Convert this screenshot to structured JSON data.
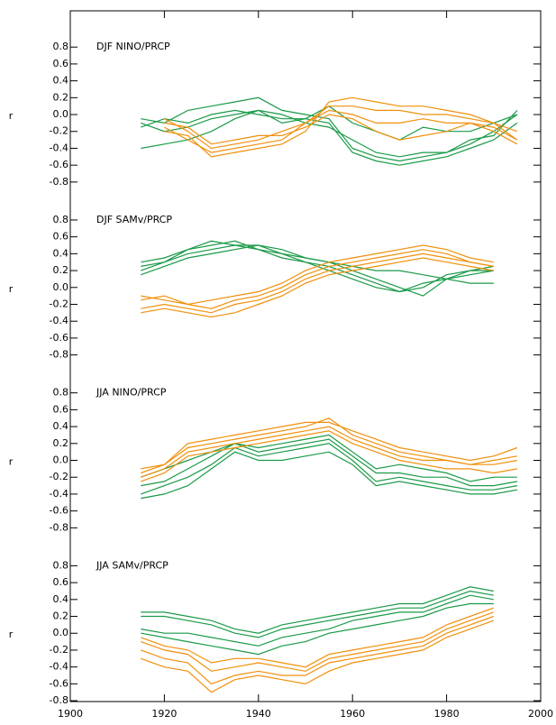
{
  "chart_data": [
    {
      "type": "line",
      "title": "DJF NINO/PRCP",
      "ylabel": "r",
      "x": [
        1915,
        1920,
        1925,
        1930,
        1935,
        1940,
        1945,
        1950,
        1955,
        1960,
        1965,
        1970,
        1975,
        1980,
        1985,
        1990,
        1995
      ],
      "ylim": [
        -1.0,
        1.23
      ],
      "yticks": [
        -0.8,
        -0.6,
        -0.4,
        -0.2,
        {
          "value": 0,
          "label": "0.0"
        },
        0.2,
        0.4,
        0.6,
        0.8
      ],
      "series": [
        {
          "color": "#1a9a48",
          "values": [
            -0.05,
            -0.1,
            0.05,
            0.1,
            0.15,
            0.2,
            0.05,
            0.0,
            -0.05,
            -0.4,
            -0.5,
            -0.55,
            -0.5,
            -0.45,
            -0.35,
            -0.2,
            0.0
          ]
        },
        {
          "color": "#1a9a48",
          "values": [
            -0.15,
            -0.05,
            -0.1,
            0.0,
            0.05,
            0.0,
            -0.05,
            -0.05,
            -0.1,
            -0.45,
            -0.55,
            -0.6,
            -0.55,
            -0.5,
            -0.4,
            -0.3,
            -0.1
          ]
        },
        {
          "color": "#1a9a48",
          "values": [
            -0.4,
            -0.35,
            -0.3,
            -0.2,
            -0.05,
            0.05,
            0.0,
            -0.1,
            -0.15,
            -0.3,
            -0.45,
            -0.5,
            -0.45,
            -0.45,
            -0.3,
            -0.25,
            0.05
          ]
        },
        {
          "color": "#1a9a48",
          "values": [
            -0.1,
            -0.2,
            -0.15,
            -0.05,
            0.0,
            0.05,
            -0.1,
            -0.05,
            0.1,
            -0.1,
            -0.2,
            -0.3,
            -0.15,
            -0.2,
            -0.2,
            -0.1,
            0.0
          ]
        },
        {
          "color": "#f0900c",
          "values": [
            null,
            -0.15,
            -0.3,
            -0.45,
            -0.4,
            -0.35,
            -0.3,
            -0.1,
            0.1,
            0.1,
            0.05,
            0.05,
            0.0,
            0.0,
            -0.05,
            -0.1,
            -0.2
          ]
        },
        {
          "color": "#f0900c",
          "values": [
            null,
            -0.2,
            -0.25,
            -0.5,
            -0.45,
            -0.4,
            -0.35,
            -0.2,
            0.15,
            0.2,
            0.15,
            0.1,
            0.1,
            0.05,
            0.0,
            -0.1,
            -0.3
          ]
        },
        {
          "color": "#f0900c",
          "values": [
            null,
            -0.1,
            -0.15,
            -0.35,
            -0.3,
            -0.25,
            -0.25,
            -0.15,
            0.0,
            -0.05,
            -0.2,
            -0.3,
            -0.25,
            -0.2,
            -0.1,
            -0.15,
            -0.3
          ]
        },
        {
          "color": "#f0900c",
          "values": [
            null,
            -0.05,
            -0.2,
            -0.4,
            -0.35,
            -0.3,
            -0.2,
            -0.1,
            0.05,
            0.0,
            -0.1,
            -0.1,
            -0.05,
            -0.1,
            -0.1,
            -0.2,
            -0.35
          ]
        }
      ]
    },
    {
      "type": "line",
      "title": "DJF SAMv/PRCP",
      "ylabel": "r",
      "x": [
        1915,
        1920,
        1925,
        1930,
        1935,
        1940,
        1945,
        1950,
        1955,
        1960,
        1965,
        1970,
        1975,
        1980,
        1985,
        1990,
        1995
      ],
      "ylim": [
        -1.0,
        1.05
      ],
      "yticks": [
        -0.8,
        -0.6,
        -0.4,
        -0.2,
        {
          "value": 0,
          "label": "0.0"
        },
        0.2,
        0.4,
        0.6,
        0.8
      ],
      "series": [
        {
          "color": "#1a9a48",
          "values": [
            0.25,
            0.3,
            0.4,
            0.45,
            0.5,
            0.5,
            0.4,
            0.3,
            0.25,
            0.15,
            0.05,
            -0.05,
            0.05,
            0.1,
            0.15,
            0.2,
            null
          ]
        },
        {
          "color": "#1a9a48",
          "values": [
            0.2,
            0.3,
            0.45,
            0.5,
            0.55,
            0.45,
            0.4,
            0.35,
            0.3,
            0.2,
            0.1,
            0.0,
            -0.1,
            0.1,
            0.2,
            0.25,
            null
          ]
        },
        {
          "color": "#1a9a48",
          "values": [
            0.15,
            0.25,
            0.35,
            0.4,
            0.45,
            0.5,
            0.45,
            0.35,
            0.3,
            0.25,
            0.2,
            0.2,
            0.15,
            0.1,
            0.05,
            0.05,
            null
          ]
        },
        {
          "color": "#1a9a48",
          "values": [
            0.3,
            0.35,
            0.45,
            0.55,
            0.5,
            0.45,
            0.35,
            0.3,
            0.2,
            0.1,
            0.0,
            -0.05,
            0.0,
            0.15,
            0.2,
            0.2,
            null
          ]
        },
        {
          "color": "#f0900c",
          "values": [
            -0.1,
            -0.15,
            -0.2,
            -0.15,
            -0.1,
            -0.05,
            0.05,
            0.2,
            0.3,
            0.35,
            0.4,
            0.45,
            0.5,
            0.45,
            0.35,
            0.3,
            null
          ]
        },
        {
          "color": "#f0900c",
          "values": [
            -0.25,
            -0.2,
            -0.25,
            -0.3,
            -0.2,
            -0.15,
            -0.05,
            0.1,
            0.2,
            0.25,
            0.3,
            0.35,
            0.4,
            0.35,
            0.3,
            0.25,
            null
          ]
        },
        {
          "color": "#f0900c",
          "values": [
            -0.3,
            -0.25,
            -0.3,
            -0.35,
            -0.3,
            -0.2,
            -0.1,
            0.05,
            0.15,
            0.2,
            0.25,
            0.3,
            0.35,
            0.3,
            0.25,
            0.2,
            null
          ]
        },
        {
          "color": "#f0900c",
          "values": [
            -0.15,
            -0.1,
            -0.2,
            -0.25,
            -0.15,
            -0.1,
            0.0,
            0.15,
            0.25,
            0.3,
            0.35,
            0.4,
            0.45,
            0.4,
            0.3,
            0.25,
            null
          ]
        }
      ]
    },
    {
      "type": "line",
      "title": "JJA NINO/PRCP",
      "ylabel": "r",
      "x": [
        1915,
        1920,
        1925,
        1930,
        1935,
        1940,
        1945,
        1950,
        1955,
        1960,
        1965,
        1970,
        1975,
        1980,
        1985,
        1990,
        1995
      ],
      "ylim": [
        -1.0,
        1.05
      ],
      "yticks": [
        -0.8,
        -0.6,
        -0.4,
        -0.2,
        {
          "value": 0,
          "label": "0.0"
        },
        0.2,
        0.4,
        0.6,
        0.8
      ],
      "series": [
        {
          "color": "#1a9a48",
          "values": [
            -0.3,
            -0.25,
            -0.1,
            0.05,
            0.2,
            0.1,
            0.15,
            0.2,
            0.25,
            0.05,
            -0.15,
            -0.15,
            -0.2,
            -0.2,
            -0.3,
            -0.3,
            -0.25
          ]
        },
        {
          "color": "#1a9a48",
          "values": [
            -0.4,
            -0.3,
            -0.2,
            -0.05,
            0.15,
            0.05,
            0.1,
            0.15,
            0.2,
            0.0,
            -0.25,
            -0.2,
            -0.25,
            -0.3,
            -0.35,
            -0.35,
            -0.3
          ]
        },
        {
          "color": "#1a9a48",
          "values": [
            -0.2,
            -0.1,
            0.0,
            0.1,
            0.2,
            0.15,
            0.2,
            0.25,
            0.3,
            0.1,
            -0.1,
            -0.05,
            -0.1,
            -0.15,
            -0.25,
            -0.2,
            -0.2
          ]
        },
        {
          "color": "#1a9a48",
          "values": [
            -0.45,
            -0.4,
            -0.3,
            -0.1,
            0.1,
            0.0,
            0.0,
            0.05,
            0.1,
            -0.05,
            -0.3,
            -0.25,
            -0.3,
            -0.35,
            -0.4,
            -0.4,
            -0.35
          ]
        },
        {
          "color": "#f0900c",
          "values": [
            -0.1,
            -0.05,
            0.2,
            0.25,
            0.3,
            0.35,
            0.4,
            0.45,
            0.45,
            0.35,
            0.25,
            0.15,
            0.1,
            0.05,
            0.0,
            0.05,
            0.15
          ]
        },
        {
          "color": "#f0900c",
          "values": [
            -0.2,
            -0.1,
            0.1,
            0.15,
            0.2,
            0.25,
            0.3,
            0.35,
            0.4,
            0.25,
            0.15,
            0.05,
            0.0,
            0.0,
            -0.05,
            -0.05,
            0.0
          ]
        },
        {
          "color": "#f0900c",
          "values": [
            -0.25,
            -0.15,
            0.05,
            0.1,
            0.15,
            0.2,
            0.25,
            0.3,
            0.35,
            0.2,
            0.1,
            0.0,
            -0.05,
            -0.1,
            -0.1,
            -0.15,
            -0.1
          ]
        },
        {
          "color": "#f0900c",
          "values": [
            -0.15,
            -0.05,
            0.15,
            0.2,
            0.25,
            0.3,
            0.35,
            0.4,
            0.5,
            0.3,
            0.2,
            0.1,
            0.05,
            0.0,
            -0.05,
            0.0,
            0.05
          ]
        }
      ]
    },
    {
      "type": "line",
      "title": "JJA SAMv/PRCP",
      "ylabel": "r",
      "x": [
        1915,
        1920,
        1925,
        1930,
        1935,
        1940,
        1945,
        1950,
        1955,
        1960,
        1965,
        1970,
        1975,
        1980,
        1985,
        1990,
        1995
      ],
      "xlim": [
        1900,
        2000
      ],
      "xticks": [
        1900,
        1920,
        1940,
        1960,
        1980,
        2000
      ],
      "ylim": [
        -0.81,
        1.05
      ],
      "yticks": [
        -0.8,
        -0.6,
        -0.4,
        -0.2,
        {
          "value": 0,
          "label": "0.0"
        },
        0.2,
        0.4,
        0.6,
        0.8
      ],
      "series": [
        {
          "color": "#1a9a48",
          "values": [
            0.2,
            0.2,
            0.15,
            0.1,
            0.0,
            -0.05,
            0.05,
            0.1,
            0.15,
            0.2,
            0.25,
            0.3,
            0.3,
            0.4,
            0.5,
            0.45,
            null
          ]
        },
        {
          "color": "#1a9a48",
          "values": [
            0.05,
            0.0,
            0.0,
            -0.05,
            -0.1,
            -0.15,
            -0.05,
            0.0,
            0.05,
            0.15,
            0.2,
            0.25,
            0.25,
            0.35,
            0.45,
            0.4,
            null
          ]
        },
        {
          "color": "#1a9a48",
          "values": [
            0.25,
            0.25,
            0.2,
            0.15,
            0.05,
            0.0,
            0.1,
            0.15,
            0.2,
            0.25,
            0.3,
            0.35,
            0.35,
            0.45,
            0.55,
            0.5,
            null
          ]
        },
        {
          "color": "#1a9a48",
          "values": [
            0.0,
            -0.05,
            -0.1,
            -0.15,
            -0.2,
            -0.25,
            -0.15,
            -0.1,
            0.0,
            0.05,
            0.1,
            0.15,
            0.2,
            0.3,
            0.35,
            0.35,
            null
          ]
        },
        {
          "color": "#f0900c",
          "values": [
            -0.2,
            -0.3,
            -0.35,
            -0.6,
            -0.5,
            -0.45,
            -0.5,
            -0.5,
            -0.35,
            -0.3,
            -0.25,
            -0.2,
            -0.15,
            0.0,
            0.1,
            0.2,
            null
          ]
        },
        {
          "color": "#f0900c",
          "values": [
            -0.1,
            -0.2,
            -0.25,
            -0.45,
            -0.4,
            -0.35,
            -0.4,
            -0.45,
            -0.3,
            -0.25,
            -0.2,
            -0.15,
            -0.1,
            0.05,
            0.15,
            0.25,
            null
          ]
        },
        {
          "color": "#f0900c",
          "values": [
            -0.3,
            -0.4,
            -0.45,
            -0.7,
            -0.55,
            -0.5,
            -0.55,
            -0.6,
            -0.45,
            -0.35,
            -0.3,
            -0.25,
            -0.2,
            -0.05,
            0.05,
            0.15,
            null
          ]
        },
        {
          "color": "#f0900c",
          "values": [
            -0.05,
            -0.15,
            -0.2,
            -0.35,
            -0.3,
            -0.3,
            -0.35,
            -0.4,
            -0.25,
            -0.2,
            -0.15,
            -0.1,
            -0.05,
            0.1,
            0.2,
            0.3,
            null
          ]
        }
      ]
    }
  ]
}
